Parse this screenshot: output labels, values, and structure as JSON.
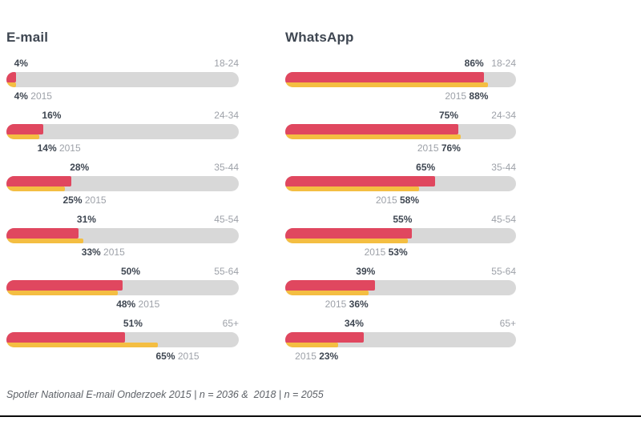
{
  "page": {
    "footer": "Spotler Nationaal E-mail Onderzoek 2015 | n = 2036 &  2018 | n = 2055"
  },
  "colors": {
    "red_2018": "#E0475F",
    "yellow_2015": "#F4BE42",
    "track": "#D8D8D8",
    "dark_text": "#3E4651",
    "muted_text": "#9DA1A8",
    "footer_text": "#5D6167",
    "bottom_rule": "#0B0B0B"
  },
  "chart_data": [
    {
      "type": "bar",
      "title": "E-mail",
      "orientation": "horizontal",
      "categories": [
        "18-24",
        "24-34",
        "35-44",
        "45-54",
        "55-64",
        "65+"
      ],
      "series": [
        {
          "name": "2018",
          "values": [
            4,
            16,
            28,
            31,
            50,
            51
          ]
        },
        {
          "name": "2015",
          "values": [
            4,
            14,
            25,
            33,
            48,
            65
          ]
        }
      ],
      "xlim": [
        0,
        100
      ],
      "unit": "%",
      "grid": false,
      "legend": "none",
      "value_label_anchor": "start",
      "year_label_order": "percent-first"
    },
    {
      "type": "bar",
      "title": "WhatsApp",
      "orientation": "horizontal",
      "categories": [
        "18-24",
        "24-34",
        "35-44",
        "45-54",
        "55-64",
        "65+"
      ],
      "series": [
        {
          "name": "2018",
          "values": [
            86,
            75,
            65,
            55,
            39,
            34
          ]
        },
        {
          "name": "2015",
          "values": [
            88,
            76,
            58,
            53,
            36,
            23
          ]
        }
      ],
      "xlim": [
        0,
        100
      ],
      "unit": "%",
      "grid": false,
      "legend": "none",
      "value_label_anchor": "end",
      "year_label_order": "year-first"
    }
  ]
}
